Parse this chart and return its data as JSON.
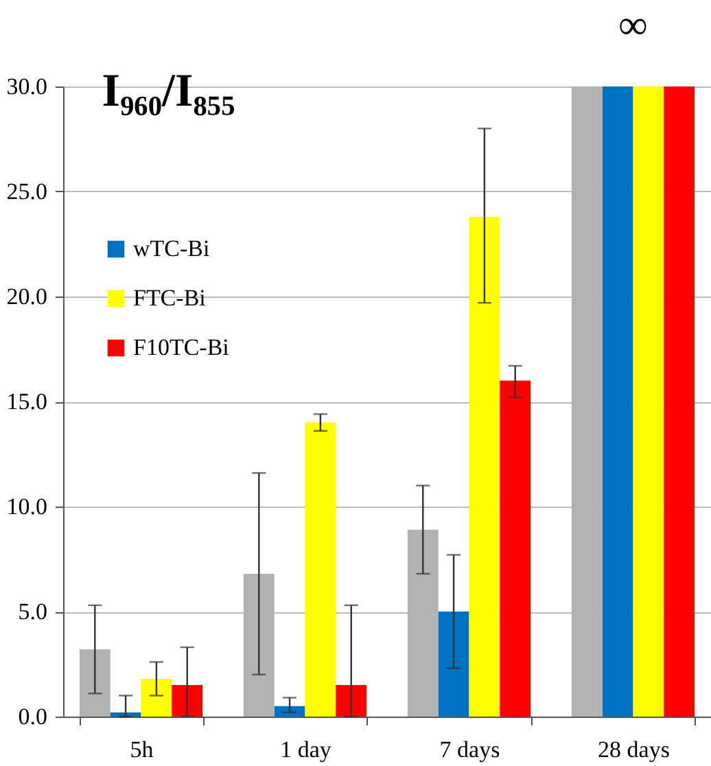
{
  "chart_data": {
    "type": "bar",
    "title": "I₉₆₀/I₈₅₅",
    "categories": [
      "5h",
      "1 day",
      "7 days",
      "28 days"
    ],
    "series": [
      {
        "color": "#b2b2b2",
        "values": [
          3.2,
          6.8,
          8.9,
          30
        ],
        "errors": [
          [
            1.1,
            5.3
          ],
          [
            2.0,
            11.6
          ],
          [
            6.8,
            11.0
          ],
          null
        ]
      },
      {
        "name": "wTC-Bi",
        "color": "#0070c0",
        "values": [
          0.2,
          0.5,
          5.0,
          30
        ],
        "errors": [
          [
            0.0,
            1.0
          ],
          [
            0.2,
            0.9
          ],
          [
            2.3,
            7.7
          ],
          null
        ]
      },
      {
        "name": "FTC-Bi",
        "color": "#ffff00",
        "values": [
          1.8,
          14.0,
          23.8,
          30
        ],
        "errors": [
          [
            1.0,
            2.6
          ],
          [
            13.6,
            14.4
          ],
          [
            19.7,
            28.0
          ],
          null
        ]
      },
      {
        "name": "F10TC-Bi",
        "color": "#ff0000",
        "values": [
          1.5,
          1.5,
          16.0,
          30
        ],
        "errors": [
          [
            0.0,
            3.3
          ],
          [
            0.0,
            5.3
          ],
          [
            15.2,
            16.7
          ],
          null
        ]
      }
    ],
    "ylim": [
      0,
      30
    ],
    "yticks": [
      {
        "value": 0,
        "label": "0.0"
      },
      {
        "value": 5,
        "label": "5.0"
      },
      {
        "value": 10,
        "label": "10.0"
      },
      {
        "value": 15,
        "label": "15.0"
      },
      {
        "value": 20,
        "label": "20.0"
      },
      {
        "value": 25,
        "label": "25.0"
      },
      {
        "value": 30,
        "label": "30.0"
      }
    ],
    "annotations": [
      {
        "text": "∞",
        "x": "28 days",
        "y": 30
      }
    ],
    "grid": "y",
    "legend": "top left"
  }
}
